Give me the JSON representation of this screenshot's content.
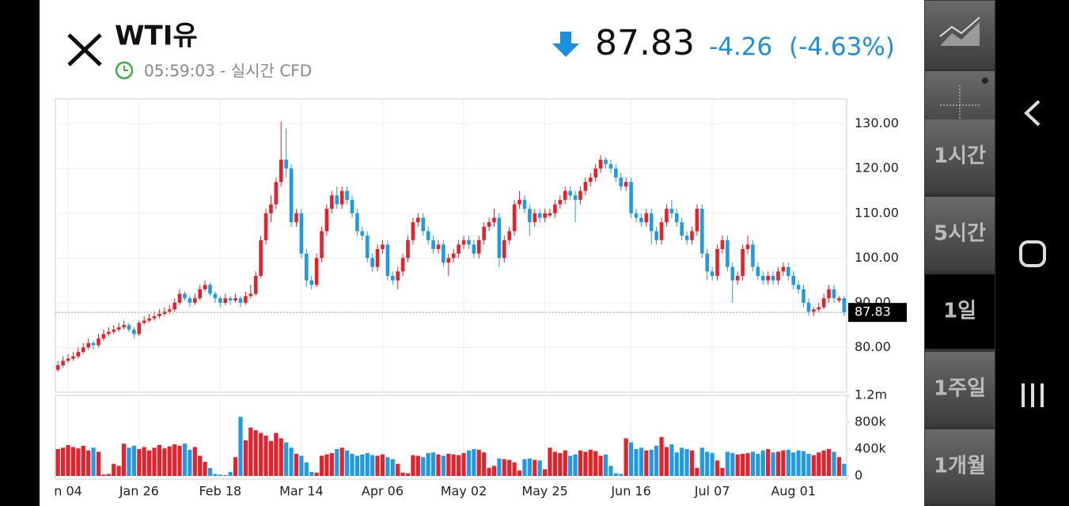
{
  "header": {
    "title": "WTI유",
    "time": "05:59:03 - 실시간 CFD",
    "price": "87.83",
    "change": "-4.26",
    "change_pct": "(-4.63%)"
  },
  "sidebar": {
    "tabs": [
      "1시간",
      "5시간",
      "1일",
      "1주일",
      "1개월"
    ],
    "selected": "1일"
  },
  "chart_data": {
    "type": "candlestick",
    "up_color": "#e8202a",
    "down_color": "#1e9be8",
    "grid": true,
    "categories": [
      null,
      null,
      "n 04",
      null,
      null,
      null,
      null,
      null,
      null,
      null,
      null,
      null,
      null,
      null,
      null,
      null,
      "Jan 26",
      null,
      null,
      null,
      null,
      null,
      null,
      null,
      null,
      null,
      null,
      null,
      null,
      null,
      null,
      null,
      "Feb 18",
      null,
      null,
      null,
      null,
      null,
      null,
      null,
      null,
      null,
      null,
      null,
      null,
      null,
      null,
      null,
      "Mar 14",
      null,
      null,
      null,
      null,
      null,
      null,
      null,
      null,
      null,
      null,
      null,
      null,
      null,
      null,
      null,
      "Apr 06",
      null,
      null,
      null,
      null,
      null,
      null,
      null,
      null,
      null,
      null,
      null,
      null,
      null,
      null,
      null,
      "May 02",
      null,
      null,
      null,
      null,
      null,
      null,
      null,
      null,
      null,
      null,
      null,
      null,
      null,
      null,
      null,
      "May 25",
      null,
      null,
      null,
      null,
      null,
      null,
      null,
      null,
      null,
      null,
      null,
      null,
      null,
      null,
      null,
      null,
      "Jun 16",
      null,
      null,
      null,
      null,
      null,
      null,
      null,
      null,
      null,
      null,
      null,
      null,
      null,
      null,
      null,
      "Jul 07",
      null,
      null,
      null,
      null,
      null,
      null,
      null,
      null,
      null,
      null,
      null,
      null,
      null,
      null,
      null,
      "Aug 01",
      null,
      null,
      null,
      null,
      null,
      null,
      null,
      null,
      null,
      null
    ],
    "ohlc": [
      [
        75,
        77,
        74.5,
        76
      ],
      [
        76,
        78,
        75.5,
        77
      ],
      [
        77,
        78.5,
        76.5,
        77.5
      ],
      [
        77.5,
        79,
        77,
        78
      ],
      [
        78,
        80,
        77.5,
        79
      ],
      [
        79,
        81,
        78.5,
        80
      ],
      [
        80,
        82,
        79.5,
        81
      ],
      [
        81,
        81.5,
        79.5,
        80.5
      ],
      [
        80.5,
        83,
        80,
        82
      ],
      [
        82,
        84,
        81.5,
        83
      ],
      [
        83,
        84.5,
        82.5,
        83.5
      ],
      [
        83.5,
        85,
        83,
        84
      ],
      [
        84,
        85.5,
        83.5,
        84.5
      ],
      [
        84.5,
        86,
        84,
        85
      ],
      [
        85,
        85.5,
        83.5,
        84
      ],
      [
        84,
        84.5,
        82,
        83
      ],
      [
        83,
        86,
        82.5,
        85.5
      ],
      [
        85.5,
        87,
        85,
        86
      ],
      [
        86,
        87.5,
        85.5,
        86.5
      ],
      [
        86.5,
        88,
        86,
        87
      ],
      [
        87,
        88.5,
        86.5,
        87.5
      ],
      [
        87.5,
        89,
        87,
        88
      ],
      [
        88,
        89.5,
        87.5,
        88.5
      ],
      [
        88.5,
        91,
        88,
        90
      ],
      [
        90,
        93,
        89.5,
        92
      ],
      [
        92,
        92.5,
        90.5,
        91
      ],
      [
        91,
        91.5,
        89,
        90
      ],
      [
        90,
        92,
        89.5,
        91
      ],
      [
        91,
        94,
        90.5,
        93
      ],
      [
        93,
        95,
        92.5,
        94
      ],
      [
        94,
        94.5,
        91.5,
        92
      ],
      [
        92,
        92.5,
        90,
        91
      ],
      [
        91,
        91.5,
        89,
        90
      ],
      [
        90,
        92,
        89.5,
        91
      ],
      [
        91,
        91.5,
        89.5,
        90.5
      ],
      [
        90.5,
        92,
        90,
        91
      ],
      [
        91,
        91.5,
        89,
        90
      ],
      [
        90,
        92.5,
        89.5,
        91.5
      ],
      [
        91.5,
        94,
        91,
        92
      ],
      [
        92,
        97,
        91.5,
        96
      ],
      [
        96,
        105,
        95.5,
        104
      ],
      [
        104,
        111,
        103,
        110
      ],
      [
        110,
        114,
        108,
        112
      ],
      [
        112,
        118,
        111,
        117
      ],
      [
        117,
        130.5,
        116,
        122
      ],
      [
        122,
        129,
        118,
        120
      ],
      [
        120,
        121,
        107,
        108
      ],
      [
        108,
        111,
        107,
        110
      ],
      [
        110,
        111,
        100,
        101
      ],
      [
        101,
        102,
        93.5,
        95
      ],
      [
        95,
        96,
        93,
        94
      ],
      [
        94,
        101,
        93.5,
        100
      ],
      [
        100,
        107,
        99,
        106
      ],
      [
        106,
        112,
        105,
        111
      ],
      [
        111,
        115,
        110,
        114
      ],
      [
        114,
        116,
        111,
        112
      ],
      [
        112,
        116,
        111,
        115
      ],
      [
        115,
        116,
        112,
        113
      ],
      [
        113,
        114,
        109,
        110
      ],
      [
        110,
        111,
        105,
        106
      ],
      [
        106,
        107,
        104,
        105
      ],
      [
        105,
        106,
        99,
        100
      ],
      [
        100,
        101,
        97,
        98
      ],
      [
        98,
        103,
        97,
        102
      ],
      [
        102,
        104,
        101,
        103
      ],
      [
        103,
        104,
        95,
        96
      ],
      [
        96,
        97,
        94,
        95
      ],
      [
        95,
        98,
        93,
        97
      ],
      [
        97,
        101,
        96,
        100
      ],
      [
        100,
        105,
        99,
        104
      ],
      [
        104,
        109,
        103,
        108
      ],
      [
        108,
        110,
        107,
        109
      ],
      [
        109,
        110,
        105,
        106
      ],
      [
        106,
        107,
        103,
        104
      ],
      [
        104,
        105,
        101,
        102
      ],
      [
        102,
        104,
        101,
        103
      ],
      [
        103,
        104,
        98,
        99
      ],
      [
        99,
        101,
        96,
        100
      ],
      [
        100,
        102,
        99,
        101
      ],
      [
        101,
        104,
        100,
        103
      ],
      [
        103,
        105,
        102,
        104
      ],
      [
        104,
        105,
        102,
        103
      ],
      [
        103,
        104,
        100,
        101
      ],
      [
        101,
        105,
        100,
        104
      ],
      [
        104,
        108,
        103,
        107
      ],
      [
        107,
        109,
        106,
        108
      ],
      [
        108,
        111,
        107,
        109
      ],
      [
        109,
        110,
        98,
        100
      ],
      [
        100,
        105,
        99,
        104
      ],
      [
        104,
        107,
        103,
        106
      ],
      [
        106,
        113,
        105,
        112
      ],
      [
        112,
        115,
        111,
        113
      ],
      [
        113,
        114,
        110,
        111
      ],
      [
        111,
        112,
        105,
        108
      ],
      [
        108,
        111,
        107,
        110
      ],
      [
        110,
        111,
        108,
        109
      ],
      [
        109,
        111,
        108,
        110
      ],
      [
        109.5,
        111,
        109,
        110
      ],
      [
        110,
        113,
        109,
        112
      ],
      [
        112,
        114,
        111,
        113
      ],
      [
        113,
        116,
        112,
        115
      ],
      [
        115,
        116,
        113,
        114
      ],
      [
        114,
        115,
        108,
        113
      ],
      [
        113,
        116,
        112,
        115
      ],
      [
        115,
        118,
        114,
        117
      ],
      [
        117,
        119,
        116,
        118
      ],
      [
        118,
        121,
        117,
        120
      ],
      [
        120,
        123,
        119,
        122
      ],
      [
        122,
        122.5,
        120,
        121
      ],
      [
        121,
        122,
        119,
        120
      ],
      [
        120,
        121,
        117,
        118
      ],
      [
        118,
        119,
        115,
        116
      ],
      [
        116,
        118,
        115,
        117
      ],
      [
        117,
        118,
        109,
        110
      ],
      [
        110,
        111,
        108,
        109
      ],
      [
        109,
        110,
        107,
        108
      ],
      [
        108,
        111,
        107,
        110
      ],
      [
        110,
        111,
        103,
        106
      ],
      [
        106,
        107,
        103,
        104
      ],
      [
        104,
        109,
        103,
        108
      ],
      [
        108,
        112,
        107,
        111
      ],
      [
        111,
        113,
        109,
        110
      ],
      [
        110,
        111,
        107,
        108
      ],
      [
        108,
        109,
        104,
        105
      ],
      [
        105,
        106,
        103,
        104
      ],
      [
        104,
        107,
        103,
        106
      ],
      [
        106,
        112,
        105,
        111
      ],
      [
        111,
        112,
        100,
        101
      ],
      [
        101,
        102,
        95,
        97
      ],
      [
        97,
        98,
        95,
        96
      ],
      [
        96,
        103,
        95,
        102
      ],
      [
        102,
        105,
        101,
        104
      ],
      [
        104,
        105,
        97,
        98
      ],
      [
        98,
        99,
        90,
        95
      ],
      [
        95,
        97,
        94,
        96
      ],
      [
        96,
        103,
        95,
        102
      ],
      [
        102,
        105,
        101,
        103
      ],
      [
        103,
        104,
        97,
        98
      ],
      [
        98,
        99,
        95,
        96
      ],
      [
        96,
        97,
        94,
        95
      ],
      [
        95,
        97,
        94,
        96
      ],
      [
        96,
        97,
        94,
        95
      ],
      [
        95,
        98,
        94,
        97
      ],
      [
        97,
        99,
        96,
        98
      ],
      [
        98,
        99,
        95,
        96
      ],
      [
        96,
        97,
        93,
        94
      ],
      [
        94,
        95,
        92,
        93
      ],
      [
        93,
        94,
        89,
        90
      ],
      [
        90,
        91,
        87,
        88
      ],
      [
        88,
        89,
        87,
        88.5
      ],
      [
        88.5,
        90,
        88,
        89
      ],
      [
        89,
        92,
        88.5,
        91
      ],
      [
        91,
        94,
        90,
        93
      ],
      [
        93,
        94,
        90,
        91
      ],
      [
        90.5,
        91.5,
        90,
        91
      ],
      [
        91,
        91.5,
        87,
        87.83
      ]
    ],
    "volume": [
      400000,
      420000,
      460000,
      430000,
      410000,
      450000,
      380000,
      420000,
      360000,
      20000,
      30000,
      180000,
      150000,
      480000,
      420000,
      450000,
      400000,
      430000,
      380000,
      420000,
      460000,
      410000,
      440000,
      470000,
      450000,
      480000,
      390000,
      430000,
      300000,
      210000,
      120000,
      30000,
      20000,
      10000,
      60000,
      280000,
      880000,
      530000,
      720000,
      680000,
      640000,
      600000,
      520000,
      640000,
      560000,
      500000,
      420000,
      330000,
      300000,
      200000,
      60000,
      50000,
      300000,
      320000,
      340000,
      400000,
      420000,
      380000,
      330000,
      300000,
      320000,
      340000,
      310000,
      300000,
      320000,
      280000,
      250000,
      180000,
      50000,
      40000,
      310000,
      300000,
      280000,
      340000,
      350000,
      320000,
      300000,
      330000,
      320000,
      310000,
      340000,
      380000,
      400000,
      390000,
      350000,
      120000,
      150000,
      260000,
      250000,
      240000,
      200000,
      80000,
      250000,
      260000,
      240000,
      230000,
      100000,
      420000,
      360000,
      340000,
      380000,
      300000,
      320000,
      380000,
      360000,
      390000,
      370000,
      300000,
      320000,
      150000,
      40000,
      30000,
      560000,
      500000,
      400000,
      420000,
      380000,
      390000,
      450000,
      580000,
      430000,
      470000,
      350000,
      420000,
      400000,
      380000,
      120000,
      420000,
      360000,
      340000,
      230000,
      120000,
      360000,
      340000,
      320000,
      330000,
      340000,
      360000,
      330000,
      380000,
      400000,
      350000,
      360000,
      380000,
      390000,
      350000,
      380000,
      370000,
      330000,
      310000,
      350000,
      380000,
      400000,
      360000,
      280000,
      180000
    ],
    "ylim": [
      70,
      135.6
    ],
    "yticks": [
      {
        "value": 80,
        "label": "80.00"
      },
      {
        "value": 90,
        "label": "90.00"
      },
      {
        "value": 100,
        "label": "100.00"
      },
      {
        "value": 110,
        "label": "110.00"
      },
      {
        "value": 120,
        "label": "120.00"
      },
      {
        "value": 130,
        "label": "130.00"
      }
    ],
    "volume_ylim": [
      0,
      1200000
    ],
    "volume_yticks": [
      0,
      {
        "value": 400000,
        "label": "400k"
      },
      {
        "value": 800000,
        "label": "800k"
      },
      {
        "value": 1200000,
        "label": "1.2m"
      }
    ]
  }
}
